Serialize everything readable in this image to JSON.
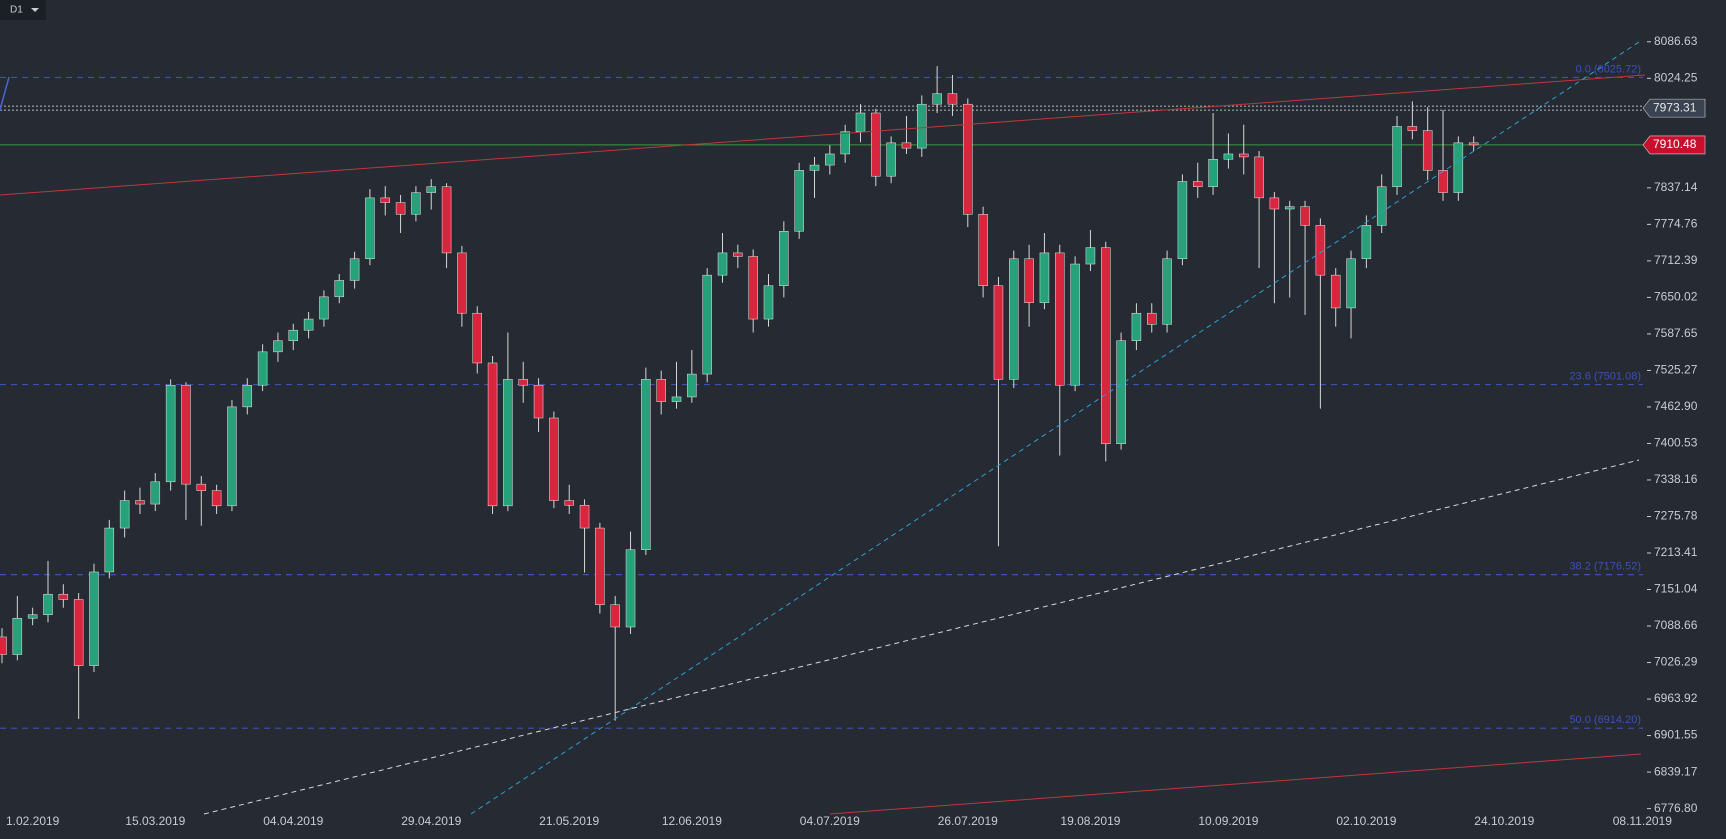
{
  "chart_data": {
    "type": "candlestick",
    "timeframe": "D1",
    "up_color": "#26a17a",
    "down_color": "#d7263d",
    "categories": [
      null,
      null,
      "1.02.2019",
      null,
      null,
      null,
      null,
      null,
      null,
      null,
      "15.03.2019",
      null,
      null,
      null,
      null,
      null,
      null,
      null,
      null,
      "04.04.2019",
      null,
      null,
      null,
      null,
      null,
      null,
      null,
      null,
      "29.04.2019",
      null,
      null,
      null,
      null,
      null,
      null,
      null,
      null,
      "21.05.2019",
      null,
      null,
      null,
      null,
      null,
      null,
      null,
      "12.06.2019",
      null,
      null,
      null,
      null,
      null,
      null,
      null,
      null,
      "04.07.2019",
      null,
      null,
      null,
      null,
      null,
      null,
      null,
      null,
      "26.07.2019",
      null,
      null,
      null,
      null,
      null,
      null,
      null,
      "19.08.2019",
      null,
      null,
      null,
      null,
      null,
      null,
      null,
      null,
      "10.09.2019",
      null,
      null,
      null,
      null,
      null,
      null,
      null,
      null,
      "02.10.2019",
      null,
      null,
      null,
      null,
      null,
      null,
      null,
      null,
      "24.10.2019",
      null,
      null,
      null,
      null,
      null,
      null,
      null,
      null,
      "08.11.2019"
    ],
    "open": [
      7070,
      7040,
      7102,
      7108,
      7143,
      7134,
      7021,
      7181,
      7256,
      7303,
      7297,
      7335,
      7500,
      7331,
      7320,
      7294,
      7463,
      7500,
      7557,
      7576,
      7594,
      7613,
      7651,
      7679,
      7716,
      7820,
      7812,
      7792,
      7829,
      7839,
      7726,
      7623,
      7538,
      7294,
      7510,
      7500,
      7444,
      7303,
      7295,
      7256,
      7125,
      7087,
      7219,
      7510,
      7472,
      7480,
      7519,
      7688,
      7726,
      7720,
      7613,
      7670,
      7763,
      7867,
      7876,
      7895,
      7933,
      7965,
      7857,
      7914,
      7905,
      7980,
      7998,
      7980,
      7792,
      7670,
      7510,
      7716,
      7641,
      7726,
      7500,
      7707,
      7735,
      7400,
      7576,
      7623,
      7604,
      7716,
      7848,
      7839,
      7886,
      7895,
      7890,
      7820,
      7801,
      7805,
      7773,
      7688,
      7632,
      7716,
      7773,
      7839,
      7942,
      7935,
      7867,
      7829,
      7914,
      null,
      null,
      null,
      null,
      null,
      null,
      null,
      null,
      null,
      null,
      null
    ],
    "high": [
      7085,
      7140,
      7120,
      7200,
      7160,
      7145,
      7195,
      7270,
      7320,
      7325,
      7350,
      7510,
      7505,
      7345,
      7330,
      7475,
      7512,
      7570,
      7590,
      7605,
      7625,
      7662,
      7690,
      7728,
      7835,
      7840,
      7825,
      7840,
      7852,
      7845,
      7738,
      7635,
      7550,
      7590,
      7540,
      7512,
      7455,
      7330,
      7305,
      7265,
      7140,
      7250,
      7530,
      7525,
      7540,
      7560,
      7700,
      7760,
      7740,
      7732,
      7690,
      7780,
      7880,
      7890,
      7910,
      7945,
      7980,
      7972,
      7925,
      7960,
      7995,
      8045,
      8030,
      7990,
      7805,
      7685,
      7730,
      7740,
      7760,
      7740,
      7720,
      7765,
      7745,
      7590,
      7640,
      7640,
      7730,
      7860,
      7880,
      7965,
      7930,
      7945,
      7900,
      7830,
      7815,
      7815,
      7785,
      7700,
      7730,
      7790,
      7860,
      7960,
      7985,
      7975,
      7970,
      7925,
      7925,
      null,
      null,
      null,
      null,
      null,
      null,
      null,
      null,
      null,
      null,
      null
    ],
    "low": [
      7025,
      7030,
      7090,
      7095,
      7120,
      6930,
      7010,
      7170,
      7240,
      7280,
      7285,
      7320,
      7270,
      7260,
      7280,
      7285,
      7450,
      7490,
      7540,
      7560,
      7580,
      7600,
      7640,
      7665,
      7705,
      7790,
      7760,
      7780,
      7800,
      7700,
      7600,
      7520,
      7280,
      7285,
      7470,
      7420,
      7290,
      7280,
      7180,
      7110,
      6927,
      7075,
      7210,
      7450,
      7460,
      7470,
      7505,
      7675,
      7700,
      7590,
      7600,
      7650,
      7750,
      7820,
      7860,
      7880,
      7915,
      7840,
      7845,
      7895,
      7890,
      7965,
      7960,
      7770,
      7650,
      7225,
      7495,
      7600,
      7630,
      7380,
      7490,
      7695,
      7370,
      7390,
      7560,
      7590,
      7590,
      7705,
      7820,
      7825,
      7870,
      7860,
      7700,
      7640,
      7650,
      7620,
      7460,
      7600,
      7580,
      7700,
      7760,
      7825,
      7920,
      7850,
      7815,
      7815,
      7900,
      null,
      null,
      null,
      null,
      null,
      null,
      null,
      null,
      null,
      null,
      null
    ],
    "close": [
      7040,
      7102,
      7108,
      7143,
      7134,
      7021,
      7181,
      7256,
      7303,
      7297,
      7335,
      7500,
      7331,
      7320,
      7294,
      7463,
      7500,
      7557,
      7576,
      7594,
      7613,
      7651,
      7679,
      7716,
      7820,
      7812,
      7792,
      7829,
      7839,
      7726,
      7623,
      7538,
      7294,
      7510,
      7500,
      7444,
      7303,
      7295,
      7256,
      7125,
      7087,
      7219,
      7510,
      7472,
      7480,
      7519,
      7688,
      7726,
      7720,
      7613,
      7670,
      7763,
      7867,
      7876,
      7895,
      7933,
      7965,
      7857,
      7914,
      7905,
      7980,
      7998,
      7980,
      7792,
      7670,
      7510,
      7716,
      7641,
      7726,
      7500,
      7707,
      7735,
      7400,
      7576,
      7623,
      7604,
      7716,
      7848,
      7839,
      7886,
      7895,
      7890,
      7820,
      7801,
      7805,
      7773,
      7688,
      7632,
      7716,
      7773,
      7839,
      7942,
      7935,
      7867,
      7829,
      7914,
      7910.48,
      null,
      null,
      null,
      null,
      null,
      null,
      null,
      null,
      null,
      null,
      null
    ],
    "ylim": [
      6771,
      8158
    ],
    "yticks": [
      8086.63,
      8024.25,
      7837.14,
      7774.76,
      7712.39,
      7650.02,
      7587.65,
      7525.27,
      {
        "value": 7462.9,
        "label": "7462.90"
      },
      7400.53,
      7338.16,
      7275.78,
      7213.41,
      7151.04,
      7088.66,
      7026.29,
      6963.92,
      6901.55,
      6839.17,
      {
        "value": 6776.8,
        "label": "6776.80"
      }
    ],
    "fib_levels": [
      {
        "value": 8025.72,
        "label": "0.0 (8025.72)"
      },
      {
        "value": 7501.08,
        "label": "23.6 (7501.08)"
      },
      {
        "value": 7176.52,
        "label": "38.2 (7176.52)"
      },
      {
        "value": 6914.2,
        "label": "50.0 (6914.20)"
      }
    ],
    "marker_price": 7973.31,
    "last_price": 7910.48
  }
}
